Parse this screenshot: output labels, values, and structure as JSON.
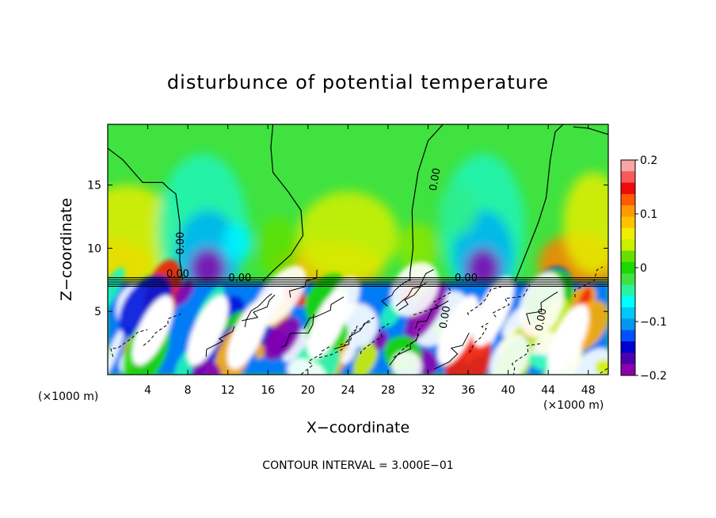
{
  "chart_data": {
    "type": "heatmap",
    "title": "disturbunce of potential temperature",
    "xlabel": "X−coordinate",
    "ylabel": "Z−coordinate",
    "x_unit_left": "(×1000 m)",
    "x_unit_right": "(×1000 m)",
    "footer": "CONTOUR INTERVAL = 3.000E−01",
    "xlim": [
      0,
      50
    ],
    "ylim": [
      0,
      19.8
    ],
    "x_ticks": [
      4,
      8,
      12,
      16,
      20,
      24,
      28,
      32,
      36,
      40,
      44,
      48
    ],
    "y_ticks": [
      5,
      10,
      15
    ],
    "interface_height": 7.3,
    "contour_labels": [
      "0.00",
      "0.00",
      "0.00",
      "0.00",
      "0.00",
      "0.00",
      "0.00"
    ],
    "colorbar": {
      "range": [
        -0.2,
        0.2
      ],
      "tick_values": [
        0.2,
        0.1,
        0,
        -0.1,
        -0.2
      ],
      "tick_labels": [
        "0.2",
        "0.1",
        "0",
        "−0.1",
        "−0.2"
      ],
      "colors": [
        "#f9a5a5",
        "#f7595c",
        "#ee0a0a",
        "#ff5a00",
        "#ff9900",
        "#ffc300",
        "#f0ee00",
        "#c8f000",
        "#66e000",
        "#19d900",
        "#3fe23f",
        "#2af2a1",
        "#00ffff",
        "#00c8f8",
        "#0098ee",
        "#0050ff",
        "#0000d0",
        "#4b00b0",
        "#8b00ad"
      ]
    },
    "upper_features": [
      {
        "x": 9.5,
        "z": 9.0,
        "kind": "cold-cell"
      },
      {
        "x": 37.5,
        "z": 9.0,
        "kind": "cold-cell"
      },
      {
        "x": 0.5,
        "z": 8.5,
        "kind": "warm-region"
      },
      {
        "x": 23.0,
        "z": 8.5,
        "kind": "warm-region"
      },
      {
        "x": 48.0,
        "z": 8.5,
        "kind": "warm-region"
      }
    ]
  }
}
